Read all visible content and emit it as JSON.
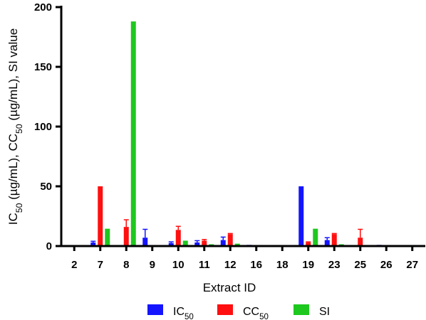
{
  "chart_data": {
    "type": "bar",
    "title": "",
    "xlabel": "Extract ID",
    "ylabel": {
      "parts": [
        {
          "t": "IC"
        },
        {
          "t": "50",
          "sub": true
        },
        {
          "t": " (µg/mL), CC"
        },
        {
          "t": "50",
          "sub": true
        },
        {
          "t": " (µg/mL), SI value"
        }
      ]
    },
    "ylim": [
      0,
      200
    ],
    "yticks": [
      0,
      50,
      100,
      150,
      200
    ],
    "categories": [
      "2",
      "7",
      "8",
      "9",
      "10",
      "11",
      "12",
      "16",
      "18",
      "19",
      "23",
      "25",
      "26",
      "27"
    ],
    "series": [
      {
        "name": "IC50",
        "color": "#1414ff",
        "values": [
          0.3,
          3,
          0,
          7,
          2.5,
          3,
          5,
          1,
          0.5,
          50,
          5,
          0.5,
          1,
          0.5
        ],
        "errors": [
          0,
          1,
          0,
          7,
          1,
          1.5,
          2.5,
          0,
          0,
          0,
          2,
          0,
          0,
          0
        ]
      },
      {
        "name": "CC50",
        "color": "#ff0f0f",
        "values": [
          0.3,
          50,
          16,
          0.5,
          13.5,
          4.5,
          10,
          0.5,
          0.5,
          3,
          10,
          7,
          0.5,
          0.5
        ],
        "errors": [
          0,
          0,
          6,
          0,
          3,
          1,
          0.5,
          0,
          0,
          0.5,
          0.5,
          7,
          0,
          0
        ]
      },
      {
        "name": "SI",
        "color": "#1ec81e",
        "values": [
          0,
          14.5,
          188,
          0,
          4.5,
          1.5,
          2,
          0,
          0,
          14.5,
          1.5,
          0,
          0,
          0
        ],
        "errors": [
          0,
          0,
          0,
          0,
          0,
          0,
          0,
          0,
          0,
          0,
          0,
          0,
          0,
          0
        ]
      }
    ],
    "legend": {
      "position": "bottom",
      "items": [
        {
          "color": "#1414ff",
          "parts": [
            {
              "t": "IC"
            },
            {
              "t": "50",
              "sub": true
            }
          ]
        },
        {
          "color": "#ff0f0f",
          "parts": [
            {
              "t": "CC"
            },
            {
              "t": "50",
              "sub": true
            }
          ]
        },
        {
          "color": "#1ec81e",
          "parts": [
            {
              "t": "SI"
            }
          ]
        }
      ]
    },
    "grid": false
  }
}
